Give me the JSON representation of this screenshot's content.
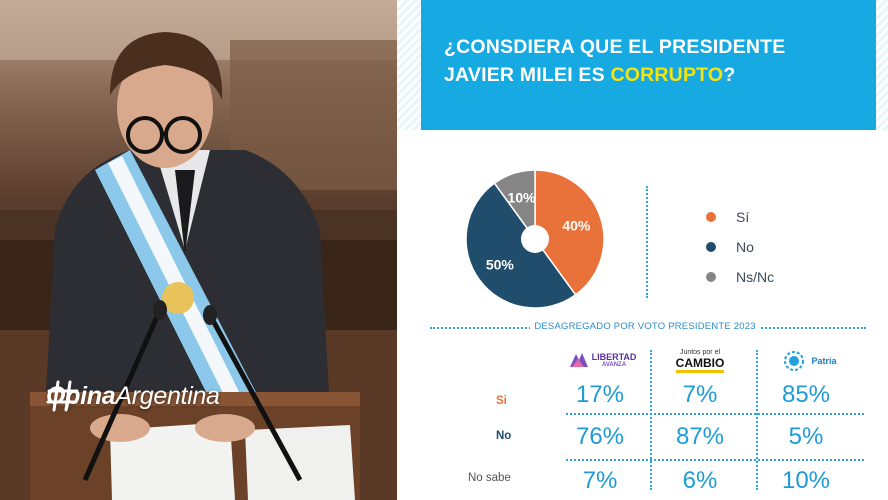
{
  "header": {
    "question_part1": "¿CONSDIERA QUE EL PRESIDENTE",
    "question_part2": "JAVIER MILEI ES ",
    "question_highlight": "CORRUPTO",
    "question_end": "?",
    "highlight_color": "#f5e30d",
    "background_color": "#17a9e1"
  },
  "branding": {
    "logo_bold": "Opina",
    "logo_light": "Argentina"
  },
  "chart_data": {
    "type": "pie",
    "labels": [
      "Sí",
      "No",
      "Ns/Nc"
    ],
    "values": [
      40,
      50,
      10
    ],
    "value_labels": [
      "40%",
      "50%",
      "10%"
    ],
    "colors": [
      "#e8723a",
      "#1f4d6b",
      "#858585"
    ]
  },
  "legend": [
    {
      "label": "Sí",
      "color": "#e8723a"
    },
    {
      "label": "No",
      "color": "#1f4d6b"
    },
    {
      "label": "Ns/Nc",
      "color": "#858585"
    }
  ],
  "breakdown": {
    "title": "DESAGREGADO POR VOTO PRESIDENTE 2023",
    "parties": [
      {
        "line1": "LIBERTAD",
        "line2": "AVANZA"
      },
      {
        "line1": "Juntos por el",
        "line2": "CAMBIO"
      },
      {
        "line1": "Patria",
        "line2": ""
      }
    ],
    "rows": [
      {
        "label": "Si",
        "color": "#e8723a",
        "values": [
          "17%",
          "7%",
          "85%"
        ]
      },
      {
        "label": "No",
        "color": "#1f4d6b",
        "values": [
          "76%",
          "87%",
          "5%"
        ]
      },
      {
        "label": "No sabe",
        "color": "#555555",
        "values": [
          "7%",
          "6%",
          "10%"
        ]
      }
    ]
  }
}
